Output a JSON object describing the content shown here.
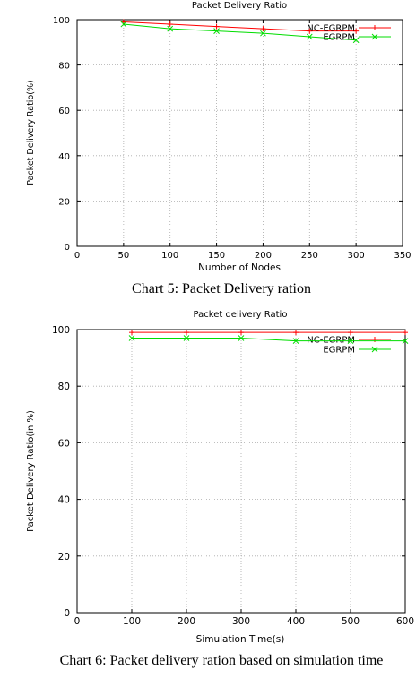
{
  "charts": [
    {
      "title": "Packet Delivery Ratio",
      "caption": "Chart 5: Packet Delivery ration",
      "chart_data": {
        "type": "line",
        "title": "Packet Delivery Ratio",
        "xlabel": "Number of Nodes",
        "ylabel": "Packet Delivery Ratio(%)",
        "xlim": [
          0,
          350
        ],
        "ylim": [
          0,
          100
        ],
        "xticks": [
          "0",
          "50",
          "100",
          "150",
          "200",
          "250",
          "300",
          "350"
        ],
        "yticks": [
          "0",
          "20",
          "40",
          "60",
          "80",
          "100"
        ],
        "grid": true,
        "legend_position": "top-right",
        "series": [
          {
            "name": "NC-EGRPM",
            "color": "#ff0000",
            "marker": "plus",
            "x": [
              50,
              100,
              150,
              200,
              250,
              300
            ],
            "y": [
              99,
              98,
              97,
              96,
              95,
              95
            ]
          },
          {
            "name": "EGRPM",
            "color": "#00dd00",
            "marker": "x",
            "x": [
              50,
              100,
              150,
              200,
              250,
              300
            ],
            "y": [
              98,
              96,
              95,
              94,
              92.5,
              91
            ]
          }
        ]
      }
    },
    {
      "title": "Packet delivery Ratio",
      "caption": "Chart 6: Packet delivery ration based on simulation time",
      "chart_data": {
        "type": "line",
        "title": "Packet delivery Ratio",
        "xlabel": "Simulation Time(s)",
        "ylabel": "Packet Delivery Ratio(in %)",
        "xlim": [
          0,
          600
        ],
        "ylim": [
          0,
          100
        ],
        "xticks": [
          "0",
          "100",
          "200",
          "300",
          "400",
          "500",
          "600"
        ],
        "yticks": [
          "0",
          "20",
          "40",
          "60",
          "80",
          "100"
        ],
        "grid": true,
        "legend_position": "top-right",
        "series": [
          {
            "name": "NC-EGRPM",
            "color": "#ff0000",
            "marker": "plus",
            "x": [
              100,
              200,
              300,
              400,
              500,
              600
            ],
            "y": [
              99,
              99,
              99,
              99,
              99,
              99
            ]
          },
          {
            "name": "EGRPM",
            "color": "#00dd00",
            "marker": "x",
            "x": [
              100,
              200,
              300,
              400,
              500,
              600
            ],
            "y": [
              97,
              97,
              97,
              96,
              96,
              96
            ]
          }
        ]
      }
    }
  ]
}
